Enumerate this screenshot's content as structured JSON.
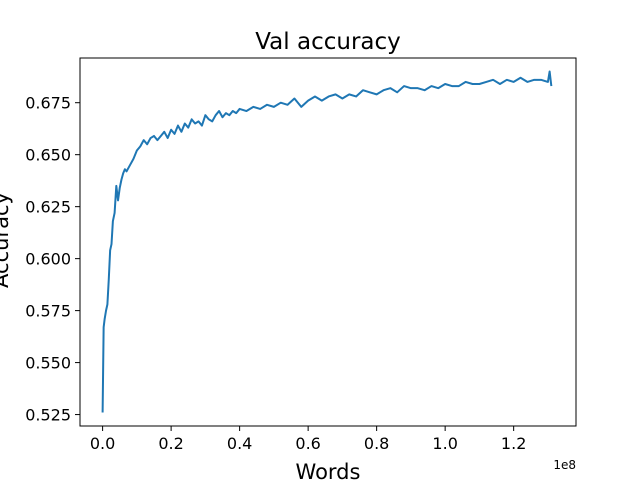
{
  "chart_data": {
    "type": "line",
    "title": "Val accuracy",
    "xlabel": "Words",
    "ylabel": "Accuracy",
    "x_offset_label": "1e8",
    "xlim": [
      -0.066,
      1.382
    ],
    "ylim": [
      0.5195,
      0.6965
    ],
    "x_ticks": [
      0.0,
      0.2,
      0.4,
      0.6,
      0.8,
      1.0,
      1.2
    ],
    "x_tick_labels": [
      "0.0",
      "0.2",
      "0.4",
      "0.6",
      "0.8",
      "1.0",
      "1.2"
    ],
    "y_ticks": [
      0.525,
      0.55,
      0.575,
      0.6,
      0.625,
      0.65,
      0.675
    ],
    "y_tick_labels": [
      "0.525",
      "0.550",
      "0.575",
      "0.600",
      "0.625",
      "0.650",
      "0.675"
    ],
    "grid": false,
    "legend": "none",
    "colors": {
      "series": "#1f77b4"
    },
    "series": [
      {
        "x": [
          0.0,
          0.003,
          0.006,
          0.01,
          0.014,
          0.018,
          0.022,
          0.026,
          0.03,
          0.035,
          0.04,
          0.045,
          0.05,
          0.055,
          0.06,
          0.065,
          0.07,
          0.08,
          0.09,
          0.1,
          0.11,
          0.12,
          0.13,
          0.14,
          0.15,
          0.16,
          0.17,
          0.18,
          0.19,
          0.2,
          0.21,
          0.22,
          0.23,
          0.24,
          0.25,
          0.26,
          0.27,
          0.28,
          0.29,
          0.3,
          0.31,
          0.32,
          0.33,
          0.34,
          0.35,
          0.36,
          0.37,
          0.38,
          0.39,
          0.4,
          0.42,
          0.44,
          0.46,
          0.48,
          0.5,
          0.52,
          0.54,
          0.56,
          0.58,
          0.6,
          0.62,
          0.64,
          0.66,
          0.68,
          0.7,
          0.72,
          0.74,
          0.76,
          0.78,
          0.8,
          0.82,
          0.84,
          0.86,
          0.88,
          0.9,
          0.92,
          0.94,
          0.96,
          0.98,
          1.0,
          1.02,
          1.04,
          1.06,
          1.08,
          1.1,
          1.12,
          1.14,
          1.16,
          1.18,
          1.2,
          1.22,
          1.24,
          1.26,
          1.28,
          1.3,
          1.305,
          1.31
        ],
        "values": [
          0.526,
          0.567,
          0.571,
          0.575,
          0.578,
          0.59,
          0.604,
          0.607,
          0.618,
          0.622,
          0.635,
          0.628,
          0.634,
          0.638,
          0.641,
          0.643,
          0.642,
          0.645,
          0.648,
          0.652,
          0.654,
          0.657,
          0.655,
          0.658,
          0.659,
          0.657,
          0.659,
          0.661,
          0.658,
          0.662,
          0.66,
          0.664,
          0.661,
          0.665,
          0.663,
          0.667,
          0.665,
          0.666,
          0.664,
          0.669,
          0.667,
          0.666,
          0.669,
          0.671,
          0.668,
          0.67,
          0.669,
          0.671,
          0.67,
          0.672,
          0.671,
          0.673,
          0.672,
          0.674,
          0.673,
          0.675,
          0.674,
          0.677,
          0.673,
          0.676,
          0.678,
          0.676,
          0.678,
          0.679,
          0.677,
          0.679,
          0.678,
          0.681,
          0.68,
          0.679,
          0.681,
          0.682,
          0.68,
          0.683,
          0.682,
          0.682,
          0.681,
          0.683,
          0.682,
          0.684,
          0.683,
          0.683,
          0.685,
          0.684,
          0.684,
          0.685,
          0.686,
          0.684,
          0.686,
          0.685,
          0.687,
          0.685,
          0.686,
          0.686,
          0.685,
          0.69,
          0.683
        ]
      }
    ]
  }
}
